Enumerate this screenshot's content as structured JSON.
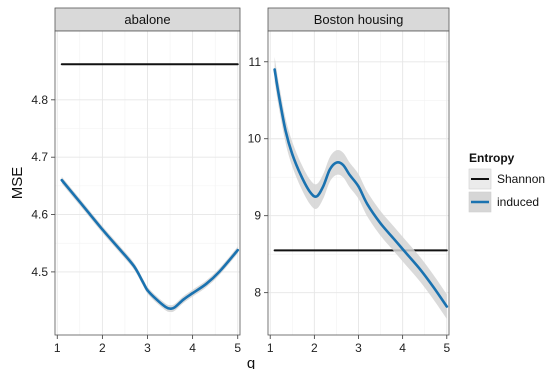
{
  "chart_data": {
    "type": "line",
    "ylabel": "MSE",
    "xlabel": "q",
    "legend": {
      "title": "Entropy",
      "placement": "right",
      "entries": [
        {
          "name": "Shannon",
          "color": "#111111"
        },
        {
          "name": "induced",
          "color": "#1a72b0"
        }
      ]
    },
    "grid": true,
    "colors": {
      "panel_bg": "#ffffff",
      "grid_major": "#e6e6e6",
      "grid_minor": "#f2f2f2",
      "strip_bg": "#d9d9d9",
      "ribbon": "#d3d3d3",
      "shannon": "#111111",
      "induced": "#1a72b0"
    },
    "panels": [
      {
        "strip": "abalone",
        "xlim": [
          0.95,
          5.05
        ],
        "ylim": [
          4.39,
          4.92
        ],
        "xticks": [
          1,
          2,
          3,
          4,
          5
        ],
        "yticks": [
          4.5,
          4.6,
          4.7,
          4.8
        ],
        "series": [
          {
            "name": "Shannon",
            "x": [
              1.1,
              5.0
            ],
            "y": [
              4.862,
              4.862
            ]
          },
          {
            "name": "induced",
            "ribbon": 0.006,
            "x": [
              1.1,
              1.5,
              2.0,
              2.4,
              2.7,
              2.9,
              3.0,
              3.2,
              3.4,
              3.5,
              3.6,
              3.8,
              4.0,
              4.3,
              4.6,
              5.0
            ],
            "y": [
              4.66,
              4.622,
              4.574,
              4.538,
              4.51,
              4.482,
              4.468,
              4.452,
              4.439,
              4.436,
              4.438,
              4.452,
              4.463,
              4.479,
              4.501,
              4.538
            ]
          }
        ]
      },
      {
        "strip": "Boston housing",
        "xlim": [
          0.95,
          5.05
        ],
        "ylim": [
          7.45,
          11.4
        ],
        "xticks": [
          1,
          2,
          3,
          4,
          5
        ],
        "yticks": [
          8,
          9,
          10,
          11
        ],
        "series": [
          {
            "name": "Shannon",
            "x": [
              1.1,
              5.0
            ],
            "y": [
              8.55,
              8.55
            ]
          },
          {
            "name": "induced",
            "ribbon": 0.16,
            "x": [
              1.1,
              1.2,
              1.35,
              1.5,
              1.7,
              1.9,
              2.05,
              2.2,
              2.35,
              2.5,
              2.65,
              2.8,
              3.0,
              3.2,
              3.5,
              3.8,
              4.1,
              4.4,
              4.7,
              5.0
            ],
            "y": [
              10.9,
              10.55,
              10.1,
              9.8,
              9.52,
              9.31,
              9.25,
              9.38,
              9.6,
              9.69,
              9.66,
              9.53,
              9.38,
              9.15,
              8.9,
              8.7,
              8.5,
              8.3,
              8.07,
              7.82
            ]
          }
        ]
      }
    ]
  }
}
